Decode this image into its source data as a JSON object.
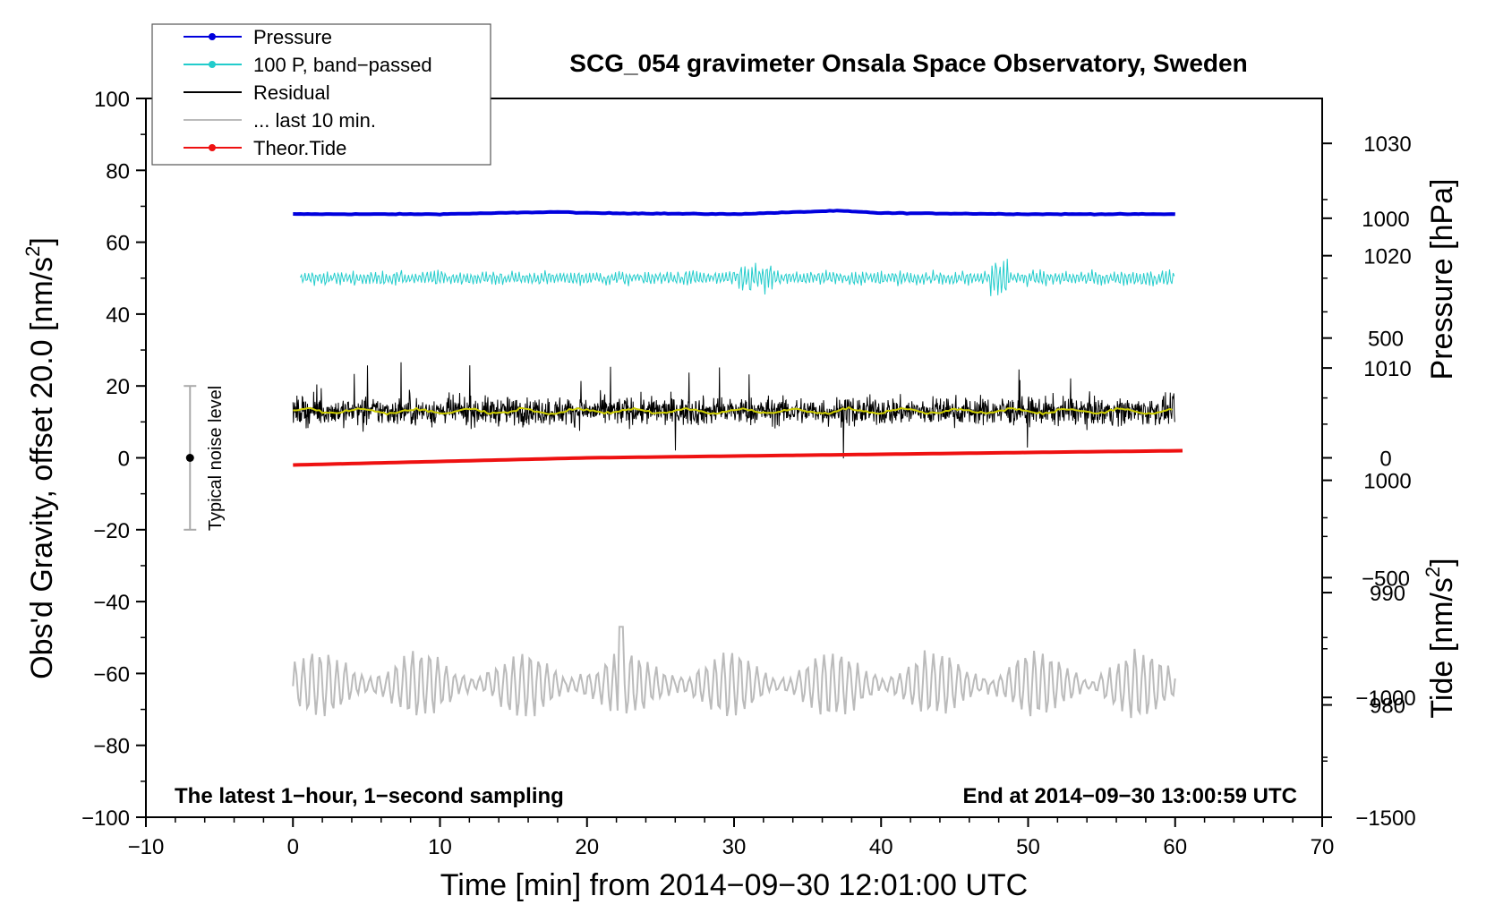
{
  "chart_data": {
    "type": "line",
    "title": "SCG_054 gravimeter Onsala Space Observatory, Sweden",
    "xlabel": "Time [min] from 2014−09−30 12:01:00 UTC",
    "ylabel": "Obs'd Gravity, offset 20.0 [nm/s",
    "ylabel_sup": "2",
    "ylabel_close": "]",
    "y2label": "Pressure [hPa]",
    "y3label": "Tide [nm/s",
    "y3label_sup": "2",
    "y3label_close": "]",
    "xlim": [
      -10,
      70
    ],
    "ylim": [
      -100,
      100
    ],
    "xticks": [
      -10,
      0,
      10,
      20,
      30,
      40,
      50,
      60,
      70
    ],
    "xtick_labels": [
      "−10",
      "0",
      "10",
      "20",
      "30",
      "40",
      "50",
      "60",
      "70"
    ],
    "yticks": [
      -100,
      -80,
      -60,
      -40,
      -20,
      0,
      20,
      40,
      60,
      80,
      100
    ],
    "ytick_labels": [
      "−100",
      "−80",
      "−60",
      "−40",
      "−20",
      "0",
      "20",
      "40",
      "60",
      "80",
      "100"
    ],
    "pressure_axis": {
      "range": [
        970,
        1034
      ],
      "ticks": [
        980,
        990,
        1000,
        1010,
        1020,
        1030
      ],
      "tick_labels": [
        "980",
        "990",
        "1000",
        "1010",
        "1020",
        "1030"
      ]
    },
    "tide_axis": {
      "range": [
        -1500,
        1500
      ],
      "ticks": [
        -1500,
        -1000,
        -500,
        0,
        500,
        1000
      ],
      "tick_labels": [
        "−1500",
        "−1000",
        "−500",
        "0",
        "500",
        "1000"
      ]
    },
    "annotation_left": "The latest 1−hour, 1−second sampling",
    "annotation_right": "End at 2014−09−30 13:00:59 UTC",
    "noise_marker": {
      "label": "Typical noise level",
      "x": -7,
      "center": 0,
      "low": -20,
      "high": 20
    },
    "legend": {
      "placement": "top-left",
      "entries": [
        {
          "label": "Pressure",
          "color": "#0000dd",
          "marker": true
        },
        {
          "label": "100 P, band−passed",
          "color": "#22cccc",
          "marker": true
        },
        {
          "label": "Residual",
          "color": "#000000",
          "marker": false
        },
        {
          "label": "... last 10 min.",
          "color": "#bbbbbb",
          "marker": false
        },
        {
          "label": "Theor.Tide",
          "color": "#ee1111",
          "marker": true
        }
      ]
    },
    "series": [
      {
        "name": "Pressure",
        "axis": "pressure",
        "color": "#0000dd",
        "x": [
          0,
          10,
          18,
          20,
          30,
          37,
          40,
          50,
          60
        ],
        "values": [
          1023.7,
          1023.7,
          1023.9,
          1023.8,
          1023.7,
          1024.0,
          1023.8,
          1023.7,
          1023.7
        ]
      },
      {
        "name": "100 P, band−passed",
        "axis": "left",
        "color": "#22cccc",
        "center": 50,
        "amplitude": 3,
        "x_range": [
          0.5,
          60
        ]
      },
      {
        "name": "Residual",
        "axis": "left",
        "color": "#000000",
        "center": 13,
        "amplitude": 12,
        "x_range": [
          0,
          60
        ]
      },
      {
        "name": "Residual smoothed",
        "axis": "left",
        "color": "#cccc00",
        "center": 13,
        "amplitude": 1,
        "x_range": [
          0,
          60
        ]
      },
      {
        "name": "... last 10 min.",
        "axis": "left",
        "color": "#bbbbbb",
        "center": -63,
        "amplitude": 9,
        "x_range": [
          0,
          60
        ]
      },
      {
        "name": "Theor.Tide",
        "axis": "tide",
        "color": "#ee1111",
        "x": [
          0,
          20,
          40,
          60.5
        ],
        "values": [
          -30,
          0,
          15,
          30
        ]
      }
    ]
  }
}
